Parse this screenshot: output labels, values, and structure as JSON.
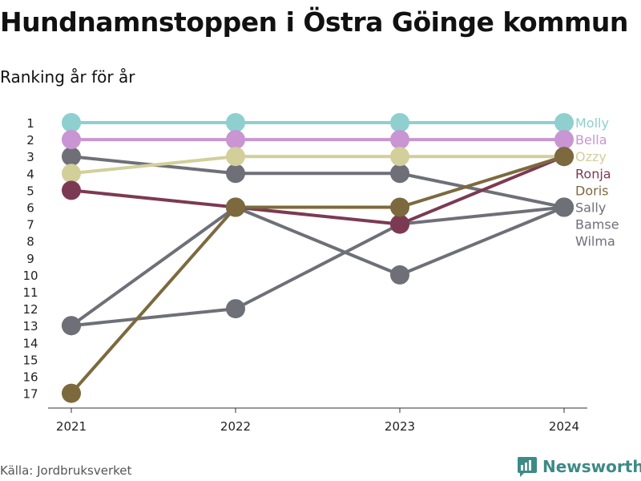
{
  "title": "Hundnamnstoppen i Östra Göinge kommun",
  "subtitle": "Ranking år för år",
  "source": "Källa: Jordbruksverket",
  "brand": "Newsworthy",
  "chart_data": {
    "type": "line",
    "title": "Hundnamnstoppen i Östra Göinge kommun",
    "subtitle": "Ranking år för år",
    "x": [
      "2021",
      "2022",
      "2023",
      "2024"
    ],
    "y_ticks": [
      1,
      2,
      3,
      4,
      5,
      6,
      7,
      8,
      9,
      10,
      11,
      12,
      13,
      14,
      15,
      16,
      17
    ],
    "ylim": [
      1,
      17
    ],
    "y_reversed": true,
    "grid": false,
    "legend": "right, labels at line ends",
    "series": [
      {
        "name": "Molly",
        "values": [
          1,
          1,
          1,
          1
        ],
        "color": "#8fcfcf"
      },
      {
        "name": "Bella",
        "values": [
          2,
          2,
          2,
          2
        ],
        "color": "#c995d2"
      },
      {
        "name": "Ozzy",
        "values": [
          4,
          3,
          3,
          3
        ],
        "color": "#d2cf9b"
      },
      {
        "name": "Ronja",
        "values": [
          5,
          6,
          7,
          3
        ],
        "color": "#7c3a52"
      },
      {
        "name": "Doris",
        "values": [
          17,
          6,
          6,
          3
        ],
        "color": "#7c6a3e"
      },
      {
        "name": "Sally",
        "values": [
          3,
          4,
          4,
          6
        ],
        "color": "#6f6f78"
      },
      {
        "name": "Bamse",
        "values": [
          13,
          6,
          10,
          6
        ],
        "color": "#6f6f78"
      },
      {
        "name": "Wilma",
        "values": [
          13,
          12,
          7,
          6
        ],
        "color": "#6f6f78"
      }
    ]
  }
}
